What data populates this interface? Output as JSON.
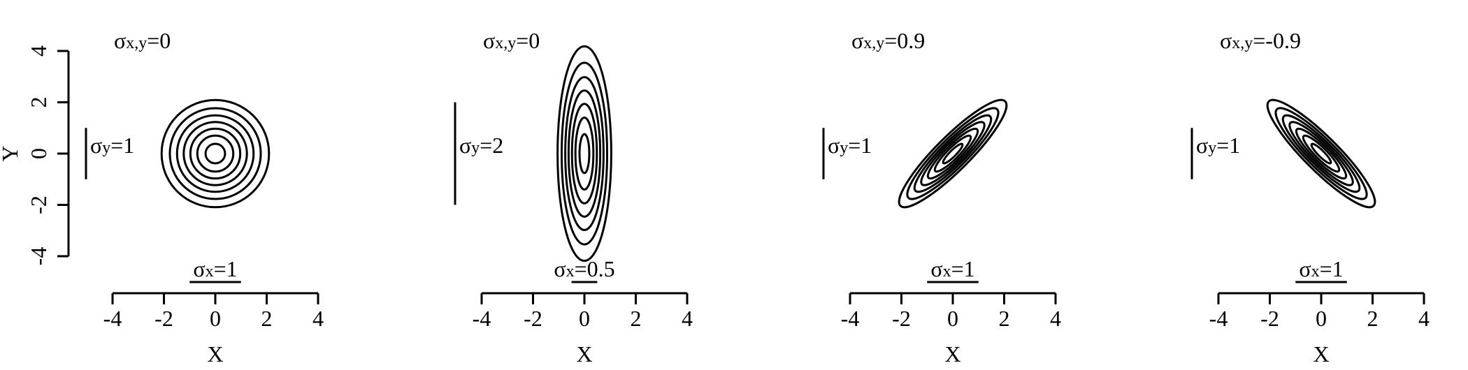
{
  "chart_data": {
    "type": "contour",
    "panels": [
      {
        "sigma_xy_label": "σ",
        "sigma_xy_sub": "x,y",
        "sigma_xy_value": "=0",
        "sigma_y_label": "σ",
        "sigma_y_sub": "y",
        "sigma_y_value": "=1",
        "sigma_x_label": "σ",
        "sigma_x_sub": "x",
        "sigma_x_value": "=1",
        "sx": 1,
        "sy": 1,
        "rho": 0,
        "contour_levels": [
          2.09,
          1.77,
          1.49,
          1.23,
          0.97,
          0.7,
          0.38
        ],
        "xlabel": "X",
        "ylabel": "Y",
        "show_y_axis": true
      },
      {
        "sigma_xy_label": "σ",
        "sigma_xy_sub": "x,y",
        "sigma_xy_value": "=0",
        "sigma_y_label": "σ",
        "sigma_y_sub": "y",
        "sigma_y_value": "=2",
        "sigma_x_label": "σ",
        "sigma_x_sub": "x",
        "sigma_x_value": "=0.5",
        "sx": 0.5,
        "sy": 2,
        "rho": 0,
        "contour_levels": [
          2.09,
          1.77,
          1.49,
          1.23,
          0.97,
          0.7,
          0.38
        ],
        "xlabel": "X",
        "ylabel": "",
        "show_y_axis": false
      },
      {
        "sigma_xy_label": "σ",
        "sigma_xy_sub": "x,y",
        "sigma_xy_value": "=0.9",
        "sigma_y_label": "σ",
        "sigma_y_sub": "y",
        "sigma_y_value": "=1",
        "sigma_x_label": "σ",
        "sigma_x_sub": "x",
        "sigma_x_value": "=1",
        "sx": 1,
        "sy": 1,
        "rho": 0.9,
        "contour_levels": [
          2.09,
          1.77,
          1.49,
          1.23,
          0.97,
          0.7,
          0.38
        ],
        "xlabel": "X",
        "ylabel": "",
        "show_y_axis": false
      },
      {
        "sigma_xy_label": "σ",
        "sigma_xy_sub": "x,y",
        "sigma_xy_value": "=-0.9",
        "sigma_y_label": "σ",
        "sigma_y_sub": "y",
        "sigma_y_value": "=1",
        "sigma_x_label": "σ",
        "sigma_x_sub": "x",
        "sigma_x_value": "=1",
        "sx": 1,
        "sy": 1,
        "rho": -0.9,
        "contour_levels": [
          2.09,
          1.77,
          1.49,
          1.23,
          0.97,
          0.7,
          0.38
        ],
        "xlabel": "X",
        "ylabel": "",
        "show_y_axis": false
      }
    ],
    "x_ticks": [
      -4,
      -2,
      0,
      2,
      4
    ],
    "y_ticks": [
      -4,
      -2,
      0,
      2,
      4
    ],
    "xlim": [
      -4,
      4
    ],
    "ylim": [
      -4,
      4
    ]
  }
}
